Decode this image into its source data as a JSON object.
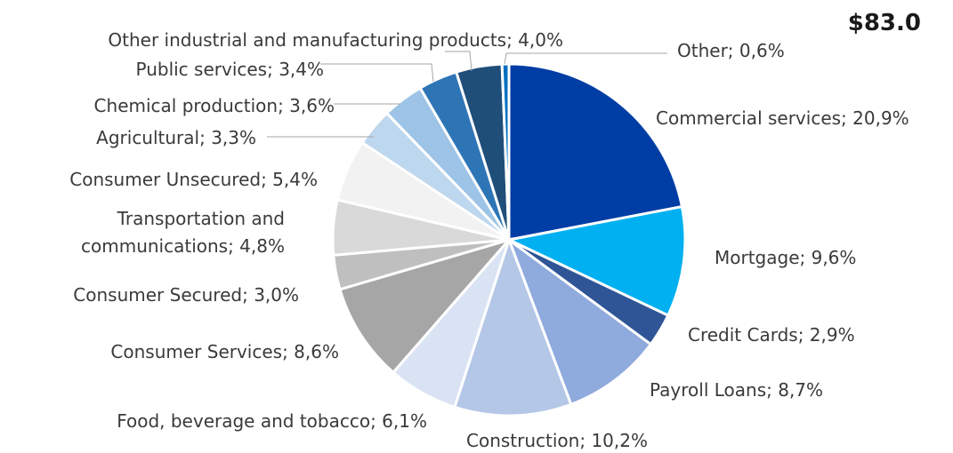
{
  "chart_data": {
    "type": "pie",
    "title": "$83.0",
    "start_angle_deg": 0,
    "direction": "clockwise",
    "slices": [
      {
        "label": "Commercial services; 20,9%",
        "value": 20.9,
        "color": "#003da5"
      },
      {
        "label": "Mortgage; 9,6%",
        "value": 9.6,
        "color": "#00b0f0"
      },
      {
        "label": "Credit Cards; 2,9%",
        "value": 2.9,
        "color": "#2f5597"
      },
      {
        "label": "Payroll Loans; 8,7%",
        "value": 8.7,
        "color": "#8faadc"
      },
      {
        "label": "Construction; 10,2%",
        "value": 10.2,
        "color": "#b4c7e7"
      },
      {
        "label": "Food, beverage and tobacco; 6,1%",
        "value": 6.1,
        "color": "#dae3f3"
      },
      {
        "label": "Consumer Services; 8,6%",
        "value": 8.6,
        "color": "#a6a6a6"
      },
      {
        "label": "Consumer Secured; 3,0%",
        "value": 3.0,
        "color": "#bfbfbf"
      },
      {
        "label": "Transportation and communications; 4,8%",
        "value": 4.8,
        "color": "#d9d9d9"
      },
      {
        "label": "Consumer Unsecured; 5,4%",
        "value": 5.4,
        "color": "#f2f2f2"
      },
      {
        "label": "Agricultural; 3,3%",
        "value": 3.3,
        "color": "#bdd7ee"
      },
      {
        "label": "Chemical production; 3,6%",
        "value": 3.6,
        "color": "#9dc3e6"
      },
      {
        "label": "Public services; 3,4%",
        "value": 3.4,
        "color": "#2e75b6"
      },
      {
        "label": "Other industrial and manufacturing products; 4,0%",
        "value": 4.0,
        "color": "#1f4e79"
      },
      {
        "label": "Other; 0,6%",
        "value": 0.6,
        "color": "#0070c0"
      }
    ]
  }
}
